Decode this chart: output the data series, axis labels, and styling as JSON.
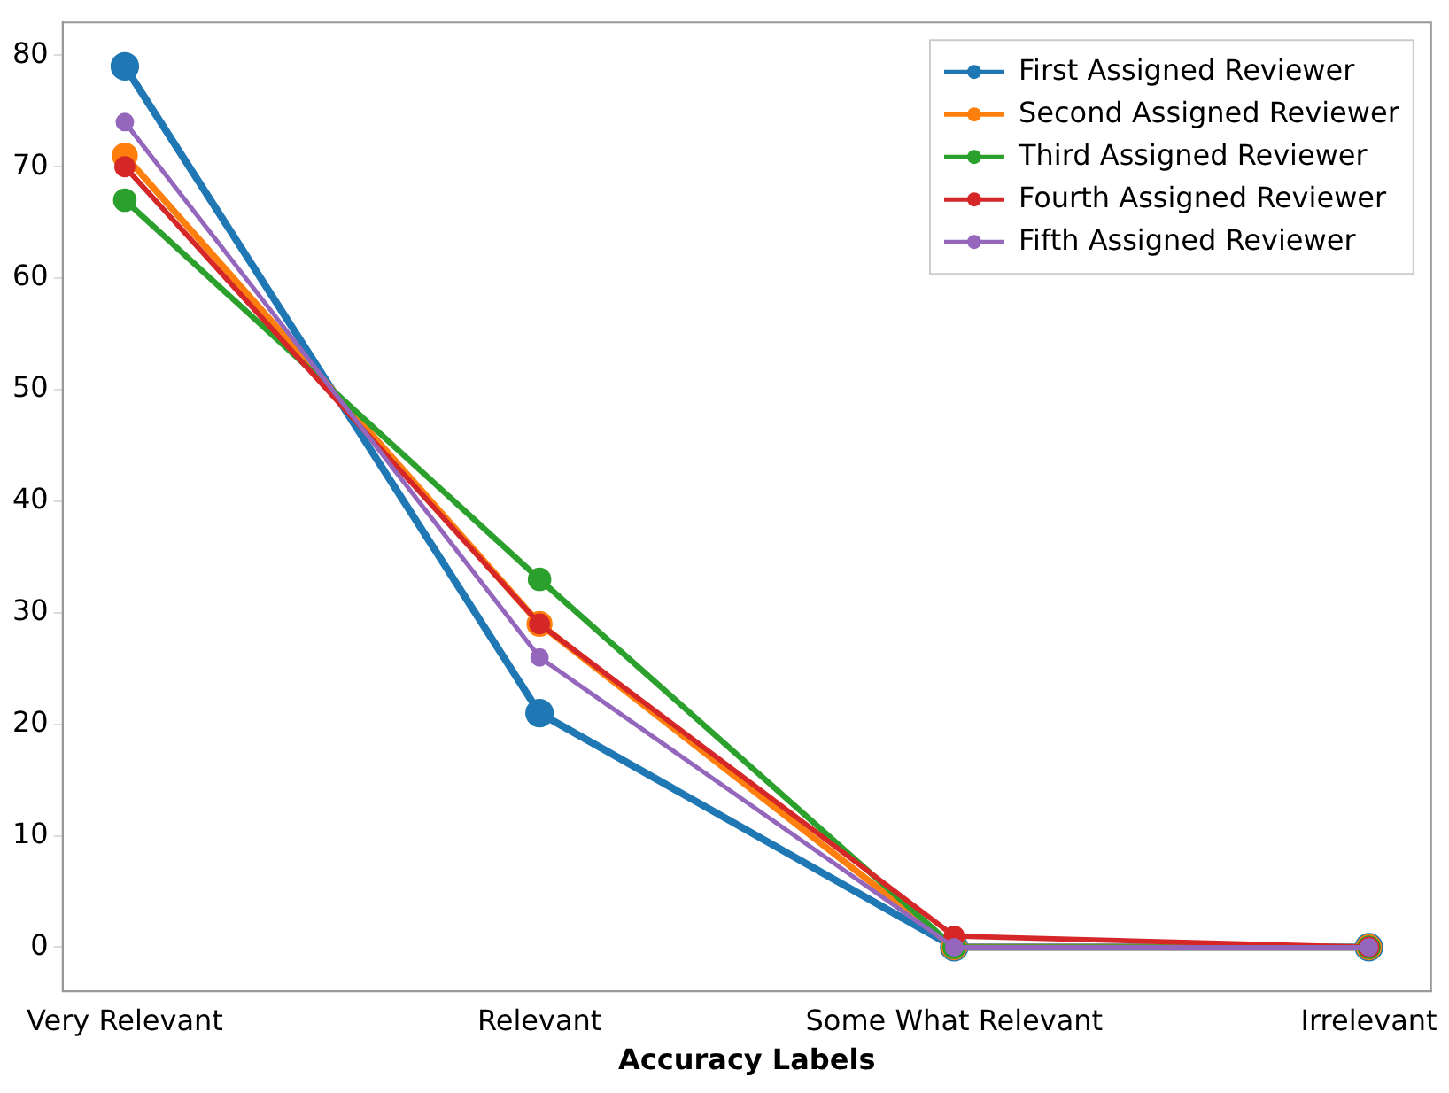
{
  "chart_data": {
    "type": "line",
    "xlabel": "Accuracy Labels",
    "categories": [
      "Very Relevant",
      "Relevant",
      "Some What Relevant",
      "Irrelevant"
    ],
    "series": [
      {
        "name": "First Assigned Reviewer",
        "color": "#1f77b4",
        "values": [
          79,
          21,
          0,
          0
        ]
      },
      {
        "name": "Second Assigned Reviewer",
        "color": "#ff7f0e",
        "values": [
          71,
          29,
          0,
          0
        ]
      },
      {
        "name": "Third Assigned Reviewer",
        "color": "#2ca02c",
        "values": [
          67,
          33,
          0,
          0
        ]
      },
      {
        "name": "Fourth Assigned Reviewer",
        "color": "#d62728",
        "values": [
          70,
          29,
          1,
          0
        ]
      },
      {
        "name": "Fifth Assigned Reviewer",
        "color": "#9467bd",
        "values": [
          74,
          26,
          0,
          0
        ]
      }
    ],
    "ylim": [
      -3.95,
      82.95
    ],
    "yticks": [
      0,
      10,
      20,
      30,
      40,
      50,
      60,
      70,
      80
    ],
    "grid": false,
    "legend": "top right",
    "marker": "circle",
    "line_style": "solid"
  }
}
